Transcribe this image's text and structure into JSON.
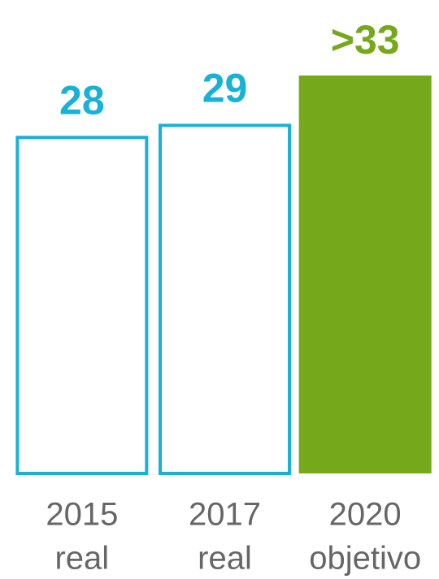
{
  "chart_data": {
    "type": "bar",
    "categories": [
      "2015",
      "2017",
      "2020"
    ],
    "category_sublabels": [
      "real",
      "real",
      "objetivo"
    ],
    "values": [
      28,
      29,
      33
    ],
    "value_labels": [
      "28",
      "29",
      ">33"
    ],
    "colors": [
      "#19b1d6",
      "#19b1d6",
      "#76a81b"
    ],
    "styles": [
      "outline",
      "outline",
      "filled"
    ],
    "ylim": [
      0,
      33
    ]
  }
}
